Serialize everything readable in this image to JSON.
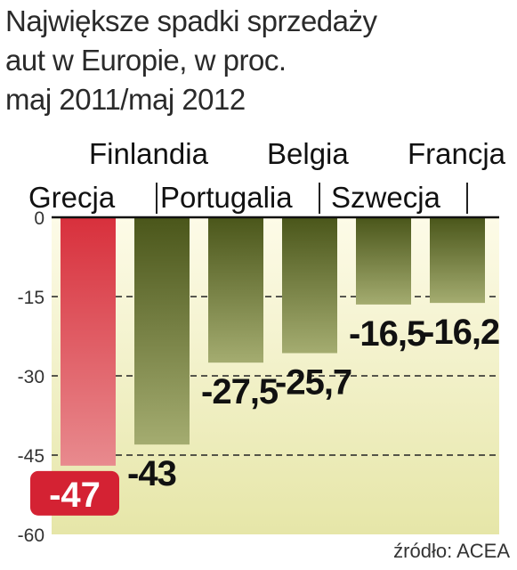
{
  "title_lines": [
    "Największe spadki sprzedaży",
    "aut w Europie, w proc.",
    "maj 2011/maj 2012"
  ],
  "source": "źródło: ACEA",
  "colors": {
    "highlight_bar": "#d8303c",
    "bar": "#4e5a1c",
    "background_gradient_top": "#fdfbe8",
    "background_gradient_bottom": "#e6e6a8",
    "highlight_label_bg": "#d42233",
    "grid": "#222222"
  },
  "chart_data": {
    "type": "bar",
    "categories": [
      "Grecja",
      "Finlandia",
      "Portugalia",
      "Belgia",
      "Szwecja",
      "Francja"
    ],
    "values": [
      -47,
      -43,
      -27.5,
      -25.7,
      -16.5,
      -16.2
    ],
    "value_labels": [
      "-47",
      "-43",
      "-27,5",
      "-25,7",
      "-16,5",
      "-16,2"
    ],
    "highlight_index": 0,
    "ylim": [
      -60,
      0
    ],
    "yticks": [
      0,
      -15,
      -30,
      -45,
      -60
    ],
    "grid": "dashed horizontal",
    "title": "Największe spadki sprzedaży aut w Europie, w proc. maj 2011/maj 2012"
  }
}
